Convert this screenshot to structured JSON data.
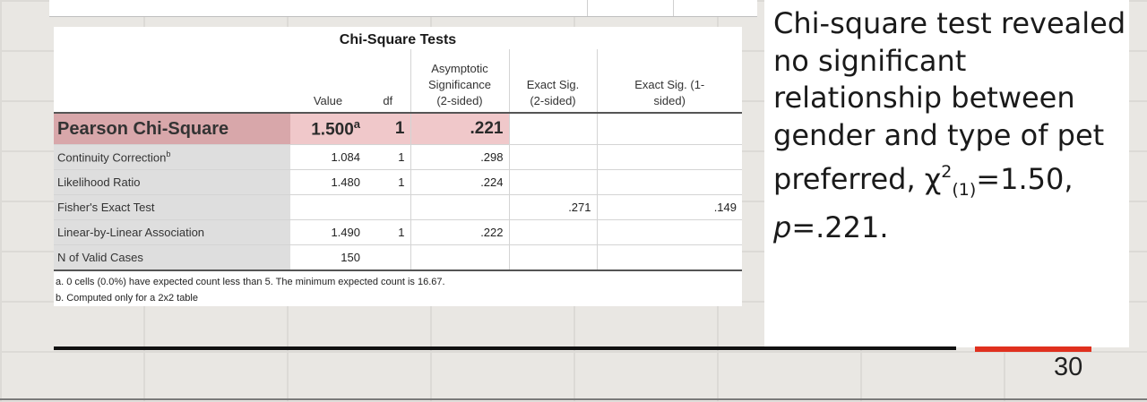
{
  "table": {
    "title": "Chi-Square Tests",
    "headers": [
      "",
      "Value",
      "df",
      "Asymptotic Significance (2-sided)",
      "Exact Sig. (2-sided)",
      "Exact Sig. (1-sided)"
    ],
    "header_lines": {
      "asym": [
        "Asymptotic",
        "Significance",
        "(2-sided)"
      ],
      "exact2": [
        "Exact Sig.",
        "(2-sided)"
      ],
      "exact1": [
        "Exact Sig. (1-",
        "sided)"
      ]
    },
    "rows": [
      {
        "label": "Pearson Chi-Square",
        "value": "1.500",
        "value_sup": "a",
        "df": "1",
        "asym": ".221",
        "exact2": "",
        "exact1": ""
      },
      {
        "label": "Continuity Correction",
        "label_sup": "b",
        "value": "1.084",
        "df": "1",
        "asym": ".298",
        "exact2": "",
        "exact1": ""
      },
      {
        "label": "Likelihood Ratio",
        "value": "1.480",
        "df": "1",
        "asym": ".224",
        "exact2": "",
        "exact1": ""
      },
      {
        "label": "Fisher's Exact Test",
        "value": "",
        "df": "",
        "asym": "",
        "exact2": ".271",
        "exact1": ".149"
      },
      {
        "label": "Linear-by-Linear Association",
        "value": "1.490",
        "df": "1",
        "asym": ".222",
        "exact2": "",
        "exact1": ""
      },
      {
        "label": "N of Valid Cases",
        "value": "150",
        "df": "",
        "asym": "",
        "exact2": "",
        "exact1": ""
      }
    ],
    "notes": [
      "a. 0 cells (0.0%) have expected count less than 5. The minimum expected count is 16.67.",
      "b. Computed only for a 2x2 table"
    ],
    "highlight_color": "#d8a7aa"
  },
  "summary": {
    "text_start": "Chi-square test revealed no significant relationship between gender and type of pet preferred, ",
    "chi_symbol": "χ",
    "superscript": "2",
    "subscript": "(1)",
    "stat_text": "=1.50,",
    "p_symbol": "p",
    "p_text": "=.221."
  },
  "slide": {
    "page_number": "30",
    "accent_color": "#e0301e"
  }
}
